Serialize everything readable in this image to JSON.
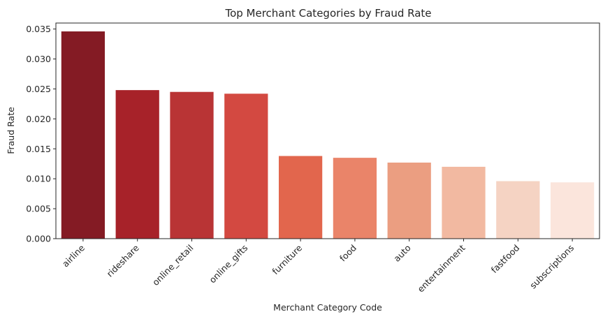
{
  "chart_data": {
    "type": "bar",
    "title": "Top Merchant Categories by Fraud Rate",
    "xlabel": "Merchant Category Code",
    "ylabel": "Fraud Rate",
    "categories": [
      "airline",
      "rideshare",
      "online_retail",
      "online_gifts",
      "furniture",
      "food",
      "auto",
      "entertainment",
      "fastfood",
      "subscriptions"
    ],
    "values": [
      0.0346,
      0.0248,
      0.0245,
      0.0242,
      0.0138,
      0.0135,
      0.0127,
      0.012,
      0.0096,
      0.0094
    ],
    "colors": [
      "#841b24",
      "#a72229",
      "#b93435",
      "#d34941",
      "#e2664d",
      "#ea8469",
      "#eb9e81",
      "#f2b9a1",
      "#f5d3c3",
      "#fbe5dc"
    ],
    "ylim": [
      0,
      0.036
    ],
    "yticks": [
      "0.000",
      "0.005",
      "0.010",
      "0.015",
      "0.020",
      "0.025",
      "0.030",
      "0.035"
    ],
    "grid": false,
    "legend": "none"
  }
}
